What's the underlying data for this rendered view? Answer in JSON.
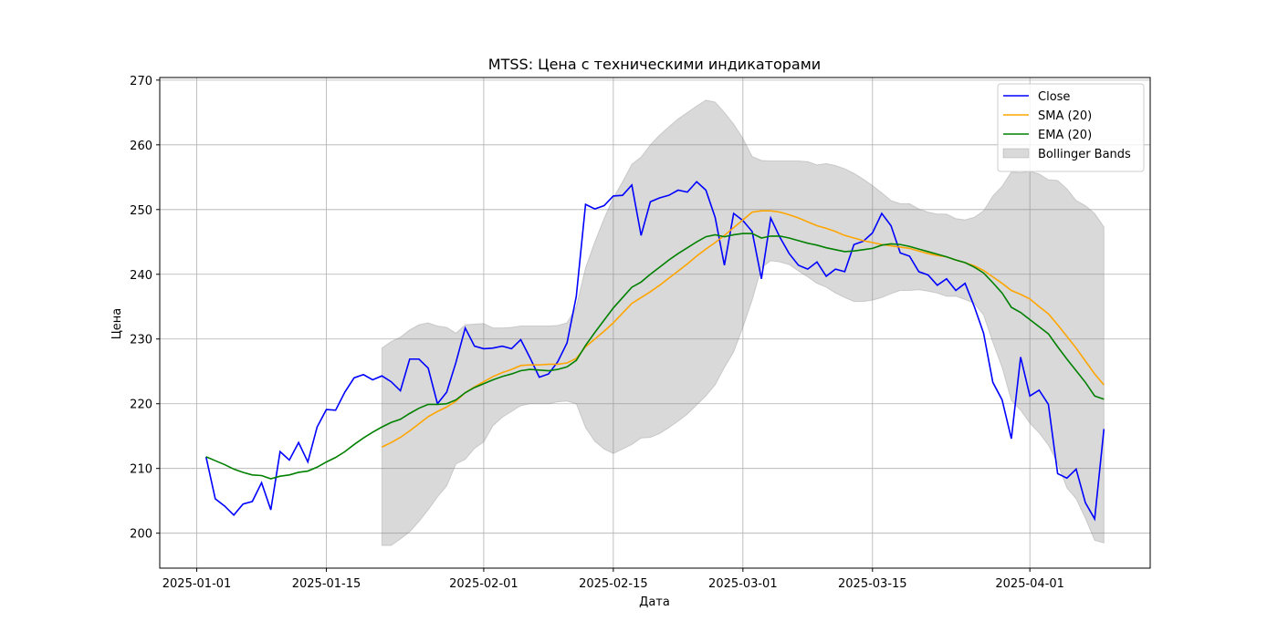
{
  "chart_data": {
    "type": "line",
    "title": "MTSS: Цена с техническими индикаторами",
    "x_label": "Дата",
    "y_label": "Цена",
    "x": [
      "2025-01-02",
      "2025-01-03",
      "2025-01-04",
      "2025-01-05",
      "2025-01-06",
      "2025-01-07",
      "2025-01-08",
      "2025-01-09",
      "2025-01-10",
      "2025-01-11",
      "2025-01-12",
      "2025-01-13",
      "2025-01-14",
      "2025-01-15",
      "2025-01-16",
      "2025-01-17",
      "2025-01-18",
      "2025-01-19",
      "2025-01-20",
      "2025-01-21",
      "2025-01-22",
      "2025-01-23",
      "2025-01-24",
      "2025-01-25",
      "2025-01-26",
      "2025-01-27",
      "2025-01-28",
      "2025-01-29",
      "2025-01-30",
      "2025-01-31",
      "2025-02-01",
      "2025-02-02",
      "2025-02-03",
      "2025-02-04",
      "2025-02-05",
      "2025-02-06",
      "2025-02-07",
      "2025-02-08",
      "2025-02-09",
      "2025-02-10",
      "2025-02-11",
      "2025-02-12",
      "2025-02-13",
      "2025-02-14",
      "2025-02-15",
      "2025-02-16",
      "2025-02-17",
      "2025-02-18",
      "2025-02-19",
      "2025-02-20",
      "2025-02-21",
      "2025-02-22",
      "2025-02-23",
      "2025-02-24",
      "2025-02-25",
      "2025-02-26",
      "2025-02-27",
      "2025-02-28",
      "2025-03-01",
      "2025-03-02",
      "2025-03-03",
      "2025-03-04",
      "2025-03-05",
      "2025-03-06",
      "2025-03-07",
      "2025-03-08",
      "2025-03-09",
      "2025-03-10",
      "2025-03-11",
      "2025-03-12",
      "2025-03-13",
      "2025-03-14",
      "2025-03-15",
      "2025-03-16",
      "2025-03-17",
      "2025-03-18",
      "2025-03-19",
      "2025-03-20",
      "2025-03-21",
      "2025-03-22",
      "2025-03-23",
      "2025-03-24",
      "2025-03-25",
      "2025-03-26",
      "2025-03-27",
      "2025-03-28",
      "2025-03-29",
      "2025-03-30",
      "2025-03-31",
      "2025-04-01",
      "2025-04-02",
      "2025-04-03",
      "2025-04-04",
      "2025-04-05",
      "2025-04-06",
      "2025-04-07",
      "2025-04-08",
      "2025-04-09"
    ],
    "series": [
      {
        "name": "Close",
        "color": "#0000ff",
        "values": [
          211.8,
          205.3,
          204.2,
          202.8,
          204.5,
          204.9,
          207.8,
          203.6,
          212.6,
          211.3,
          214.0,
          211.0,
          216.4,
          219.1,
          219.0,
          221.8,
          224.0,
          224.5,
          223.7,
          224.3,
          223.4,
          222.0,
          226.9,
          226.9,
          225.5,
          220.0,
          221.8,
          226.4,
          231.7,
          228.9,
          228.5,
          228.6,
          228.9,
          228.5,
          229.9,
          227.1,
          224.1,
          224.6,
          226.5,
          229.4,
          236.6,
          250.8,
          250.1,
          250.6,
          252.1,
          252.2,
          253.8,
          246.0,
          251.2,
          251.8,
          252.2,
          253.0,
          252.7,
          254.3,
          253.0,
          248.8,
          241.4,
          249.4,
          248.3,
          246.6,
          239.3,
          248.7,
          245.7,
          243.2,
          241.4,
          240.8,
          241.9,
          239.7,
          240.8,
          240.4,
          244.6,
          245.1,
          246.4,
          249.4,
          247.5,
          243.3,
          242.8,
          240.4,
          239.9,
          238.3,
          239.3,
          237.5,
          238.6,
          235.0,
          230.9,
          223.3,
          220.6,
          214.6,
          227.2,
          221.2,
          222.1,
          219.9,
          209.2,
          208.5,
          209.9,
          204.7,
          202.2,
          216.1
        ]
      },
      {
        "name": "SMA (20)",
        "color": "#ffa500",
        "values": [
          null,
          null,
          null,
          null,
          null,
          null,
          null,
          null,
          null,
          null,
          null,
          null,
          null,
          null,
          null,
          null,
          null,
          null,
          null,
          213.3,
          214.0,
          214.8,
          215.8,
          216.9,
          218.0,
          218.8,
          219.5,
          220.4,
          221.7,
          222.6,
          223.4,
          224.2,
          224.8,
          225.3,
          225.9,
          226.0,
          226.0,
          226.1,
          226.1,
          226.3,
          227.0,
          228.8,
          230.0,
          231.2,
          232.5,
          234.0,
          235.5,
          236.4,
          237.3,
          238.3,
          239.4,
          240.5,
          241.6,
          242.8,
          243.9,
          244.9,
          246.0,
          247.2,
          248.4,
          249.6,
          249.8,
          249.8,
          249.6,
          249.2,
          248.7,
          248.1,
          247.5,
          247.1,
          246.6,
          246.0,
          245.6,
          245.2,
          244.9,
          244.6,
          244.4,
          244.2,
          244.0,
          243.6,
          243.2,
          242.9,
          242.7,
          242.2,
          241.8,
          241.3,
          240.6,
          239.6,
          238.6,
          237.5,
          236.9,
          236.2,
          235.0,
          233.9,
          232.2,
          230.4,
          228.6,
          226.6,
          224.6,
          222.9
        ]
      },
      {
        "name": "EMA (20)",
        "color": "#008000",
        "values": [
          211.8,
          211.2,
          210.6,
          209.9,
          209.4,
          209.0,
          208.9,
          208.4,
          208.8,
          209.0,
          209.4,
          209.6,
          210.2,
          211.0,
          211.7,
          212.6,
          213.7,
          214.7,
          215.6,
          216.4,
          217.1,
          217.6,
          218.5,
          219.3,
          219.9,
          219.9,
          220.0,
          220.6,
          221.7,
          222.5,
          223.1,
          223.7,
          224.2,
          224.6,
          225.1,
          225.3,
          225.2,
          225.1,
          225.3,
          225.7,
          226.7,
          229.0,
          231.0,
          232.9,
          234.8,
          236.4,
          238.0,
          238.8,
          240.0,
          241.1,
          242.2,
          243.2,
          244.1,
          245.0,
          245.8,
          246.1,
          245.8,
          246.1,
          246.3,
          246.3,
          245.6,
          245.9,
          245.9,
          245.6,
          245.2,
          244.8,
          244.5,
          244.1,
          243.8,
          243.5,
          243.6,
          243.8,
          244.0,
          244.5,
          244.7,
          244.6,
          244.3,
          243.9,
          243.5,
          243.1,
          242.7,
          242.2,
          241.8,
          241.1,
          240.2,
          238.7,
          237.1,
          234.9,
          234.1,
          233.0,
          231.9,
          230.8,
          228.8,
          226.9,
          225.1,
          223.3,
          221.2,
          220.7
        ]
      },
      {
        "name": "Bollinger Bands",
        "color": "#808080",
        "opacity": 0.3,
        "upper": [
          null,
          null,
          null,
          null,
          null,
          null,
          null,
          null,
          null,
          null,
          null,
          null,
          null,
          null,
          null,
          null,
          null,
          null,
          null,
          228.6,
          229.6,
          230.3,
          231.4,
          232.2,
          232.5,
          232.0,
          231.8,
          230.9,
          232.2,
          232.3,
          232.4,
          231.7,
          231.7,
          231.8,
          232.0,
          232.0,
          232.0,
          232.0,
          232.1,
          232.5,
          235.0,
          241.0,
          245.0,
          248.6,
          251.8,
          254.3,
          257.0,
          258.1,
          260.0,
          261.5,
          262.8,
          264.0,
          265.0,
          266.0,
          266.9,
          266.6,
          265.0,
          263.2,
          261.0,
          258.2,
          257.6,
          257.5,
          257.5,
          257.5,
          257.5,
          257.4,
          256.9,
          257.1,
          256.8,
          256.3,
          255.6,
          254.7,
          253.7,
          252.6,
          251.4,
          250.9,
          250.9,
          250.1,
          249.6,
          249.3,
          249.3,
          248.6,
          248.4,
          248.8,
          249.8,
          252.1,
          253.6,
          255.8,
          255.7,
          255.9,
          255.5,
          254.6,
          254.5,
          253.2,
          251.4,
          250.6,
          249.4,
          247.3
        ],
        "lower": [
          null,
          null,
          null,
          null,
          null,
          null,
          null,
          null,
          null,
          null,
          null,
          null,
          null,
          null,
          null,
          null,
          null,
          null,
          null,
          198.1,
          198.1,
          199.1,
          200.2,
          201.8,
          203.6,
          205.6,
          207.3,
          210.7,
          211.4,
          213.1,
          214.1,
          216.6,
          217.9,
          218.8,
          219.7,
          220.0,
          220.0,
          220.0,
          220.3,
          220.4,
          220.0,
          216.3,
          214.2,
          213.0,
          212.3,
          213.0,
          213.7,
          214.7,
          214.8,
          215.4,
          216.3,
          217.3,
          218.4,
          219.8,
          221.2,
          222.9,
          225.6,
          228.0,
          231.8,
          236.0,
          241.0,
          242.1,
          241.9,
          241.5,
          240.5,
          239.6,
          238.6,
          238.0,
          237.1,
          236.4,
          235.8,
          235.8,
          236.0,
          236.4,
          237.0,
          237.5,
          237.5,
          237.6,
          237.4,
          237.1,
          236.6,
          236.6,
          236.1,
          235.5,
          233.7,
          229.5,
          225.6,
          220.5,
          219.0,
          217.0,
          215.5,
          213.6,
          210.8,
          207.0,
          205.3,
          202.3,
          198.9,
          198.5
        ]
      }
    ],
    "xlim": [
      "2024-12-28",
      "2025-04-14"
    ],
    "xticks": [
      "2025-01-01",
      "2025-01-15",
      "2025-02-01",
      "2025-02-15",
      "2025-03-01",
      "2025-03-15",
      "2025-04-01"
    ],
    "ylim": [
      194.6,
      270.4
    ],
    "yticks": [
      200,
      210,
      220,
      230,
      240,
      250,
      260,
      270
    ],
    "grid": true,
    "legend": "upper right"
  }
}
